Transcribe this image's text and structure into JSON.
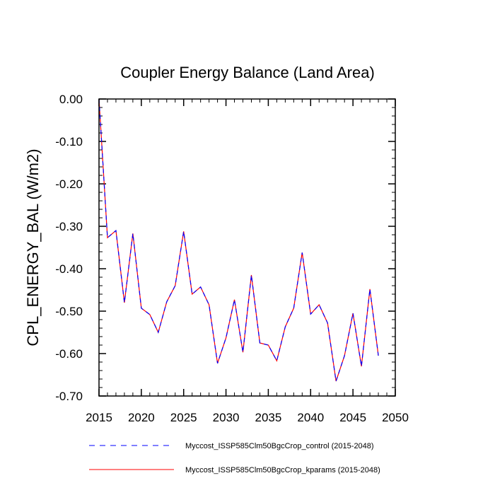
{
  "chart_data": {
    "type": "line",
    "title": "Coupler Energy Balance (Land Area)",
    "xlabel": "",
    "ylabel": "CPL_ENERGY_BAL  (W/m2)",
    "xlim": [
      2015,
      2050
    ],
    "ylim": [
      -0.7,
      0.0
    ],
    "xticks": [
      2015,
      2020,
      2025,
      2030,
      2035,
      2040,
      2045,
      2050
    ],
    "xtick_labels": [
      "2015",
      "2020",
      "2025",
      "2030",
      "2035",
      "2040",
      "2045",
      "2050"
    ],
    "yticks": [
      0.0,
      -0.1,
      -0.2,
      -0.3,
      -0.4,
      -0.5,
      -0.6,
      -0.7
    ],
    "ytick_labels": [
      "0.00",
      "-0.10",
      "-0.20",
      "-0.30",
      "-0.40",
      "-0.50",
      "-0.60",
      "-0.70"
    ],
    "grid": false,
    "legend_position": "bottom",
    "x": [
      2015,
      2016,
      2017,
      2018,
      2019,
      2020,
      2021,
      2022,
      2023,
      2024,
      2025,
      2026,
      2027,
      2028,
      2029,
      2030,
      2031,
      2032,
      2033,
      2034,
      2035,
      2036,
      2037,
      2038,
      2039,
      2040,
      2041,
      2042,
      2043,
      2044,
      2045,
      2046,
      2047,
      2048
    ],
    "series": [
      {
        "name": "Myccost_ISSP585Clm50BgcCrop_control (2015-2048)",
        "color": "#0000ff",
        "style": "dashed",
        "values": [
          0.0,
          -0.327,
          -0.31,
          -0.48,
          -0.317,
          -0.493,
          -0.508,
          -0.55,
          -0.478,
          -0.44,
          -0.312,
          -0.46,
          -0.443,
          -0.485,
          -0.623,
          -0.563,
          -0.473,
          -0.597,
          -0.415,
          -0.575,
          -0.58,
          -0.617,
          -0.537,
          -0.493,
          -0.362,
          -0.507,
          -0.485,
          -0.528,
          -0.665,
          -0.605,
          -0.505,
          -0.63,
          -0.448,
          -0.605
        ]
      },
      {
        "name": "Myccost_ISSP585Clm50BgcCrop_kparams (2015-2048)",
        "color": "#ff0000",
        "style": "solid",
        "values": [
          0.0,
          -0.327,
          -0.31,
          -0.48,
          -0.317,
          -0.493,
          -0.508,
          -0.55,
          -0.478,
          -0.44,
          -0.312,
          -0.46,
          -0.443,
          -0.485,
          -0.623,
          -0.563,
          -0.473,
          -0.597,
          -0.415,
          -0.575,
          -0.58,
          -0.617,
          -0.537,
          -0.493,
          -0.362,
          -0.507,
          -0.485,
          -0.528,
          -0.665,
          -0.605,
          -0.505,
          -0.63,
          -0.448,
          -0.605
        ]
      }
    ]
  }
}
